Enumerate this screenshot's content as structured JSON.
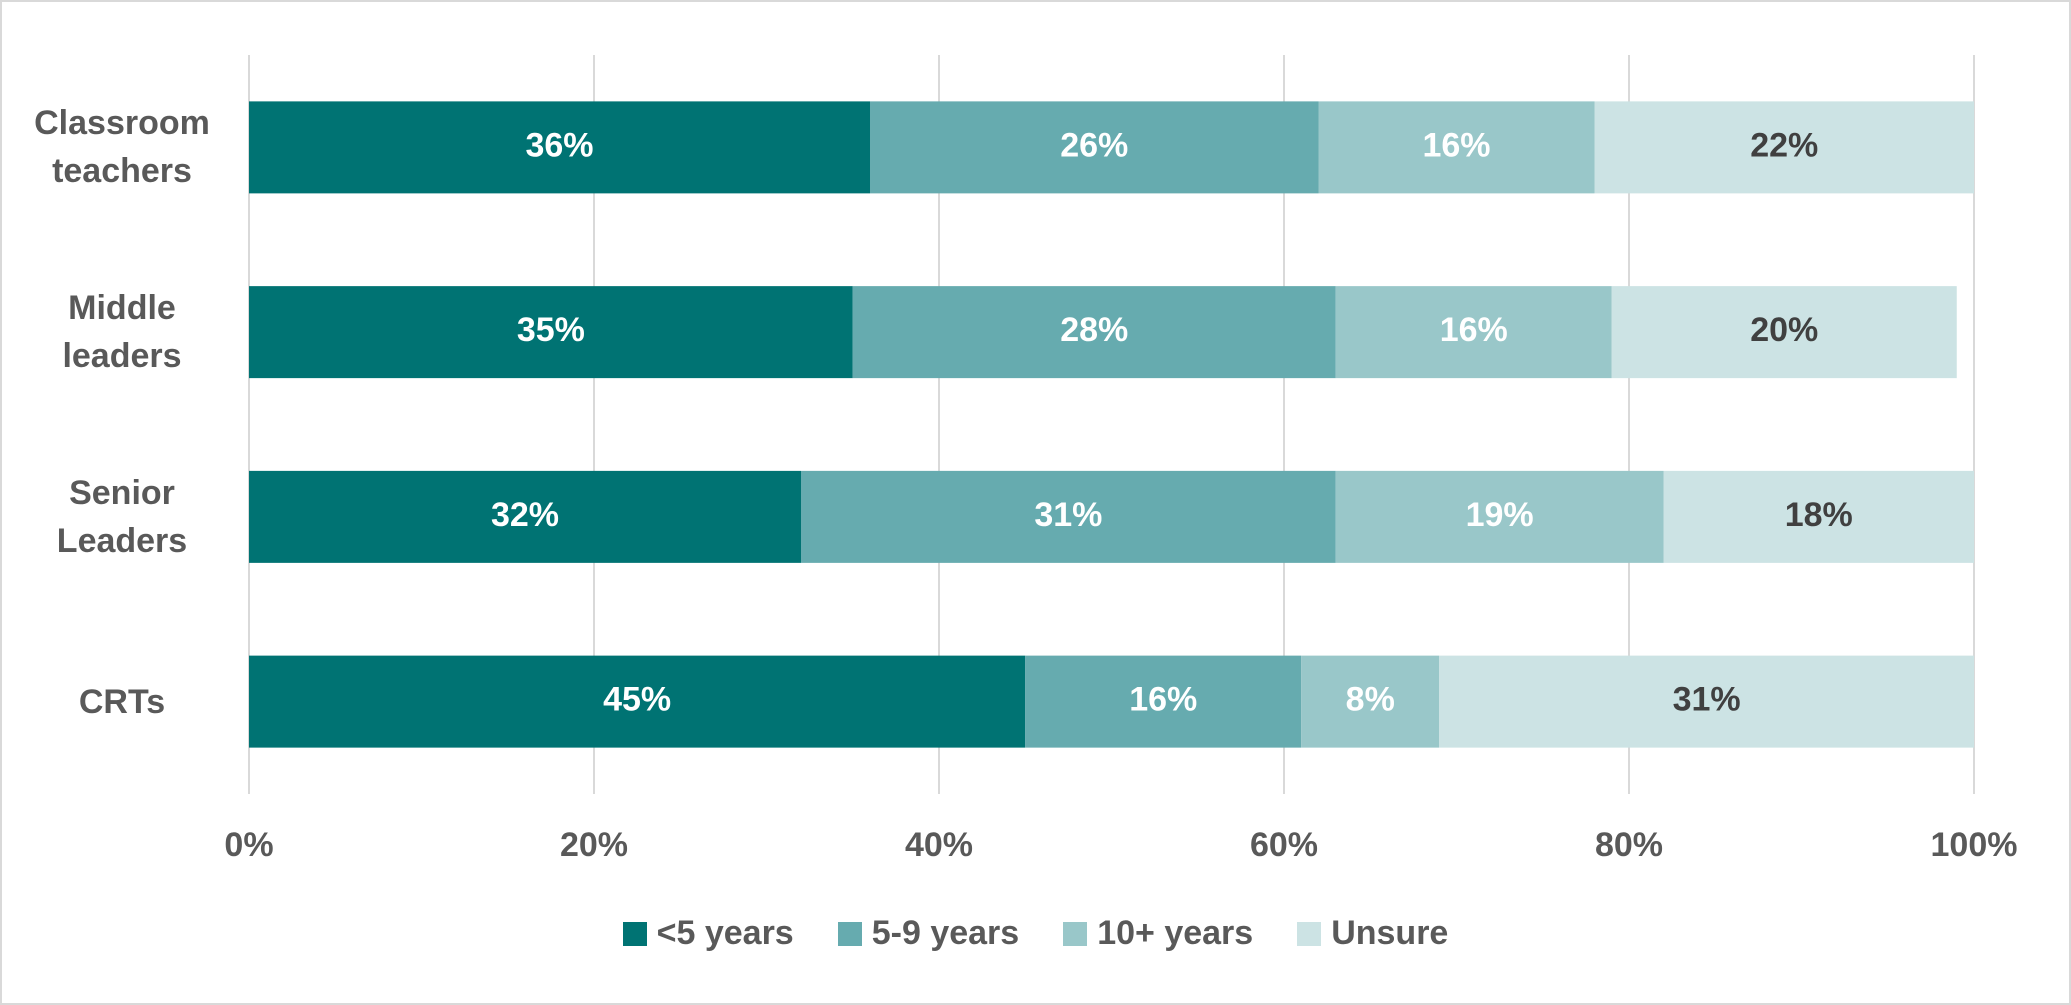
{
  "chart_data": {
    "type": "stacked-bar-horizontal",
    "categories": [
      "Classroom teachers",
      "Middle leaders",
      "Senior Leaders",
      "CRTs"
    ],
    "series": [
      {
        "name": "<5 years",
        "color": "#007373",
        "values": [
          36,
          35,
          32,
          45
        ],
        "value_labels": [
          "36%",
          "35%",
          "32%",
          "45%"
        ]
      },
      {
        "name": "5-9 years",
        "color": "#66abaf",
        "values": [
          26,
          28,
          31,
          16
        ],
        "value_labels": [
          "26%",
          "28%",
          "31%",
          "16%"
        ]
      },
      {
        "name": "10+ years",
        "color": "#99c7c9",
        "values": [
          16,
          16,
          19,
          8
        ],
        "value_labels": [
          "16%",
          "16%",
          "19%",
          "8%"
        ]
      },
      {
        "name": "Unsure",
        "color": "#cce3e4",
        "values": [
          22,
          20,
          18,
          31
        ],
        "value_labels": [
          "22%",
          "20%",
          "18%",
          "31%"
        ]
      }
    ],
    "xlim": [
      0,
      100
    ],
    "xticks": [
      {
        "value": 0,
        "label": "0%"
      },
      {
        "value": 20,
        "label": "20%"
      },
      {
        "value": 40,
        "label": "40%"
      },
      {
        "value": 60,
        "label": "60%"
      },
      {
        "value": 80,
        "label": "80%"
      },
      {
        "value": 100,
        "label": "100%"
      }
    ],
    "grid": true,
    "legend": "bottom"
  }
}
